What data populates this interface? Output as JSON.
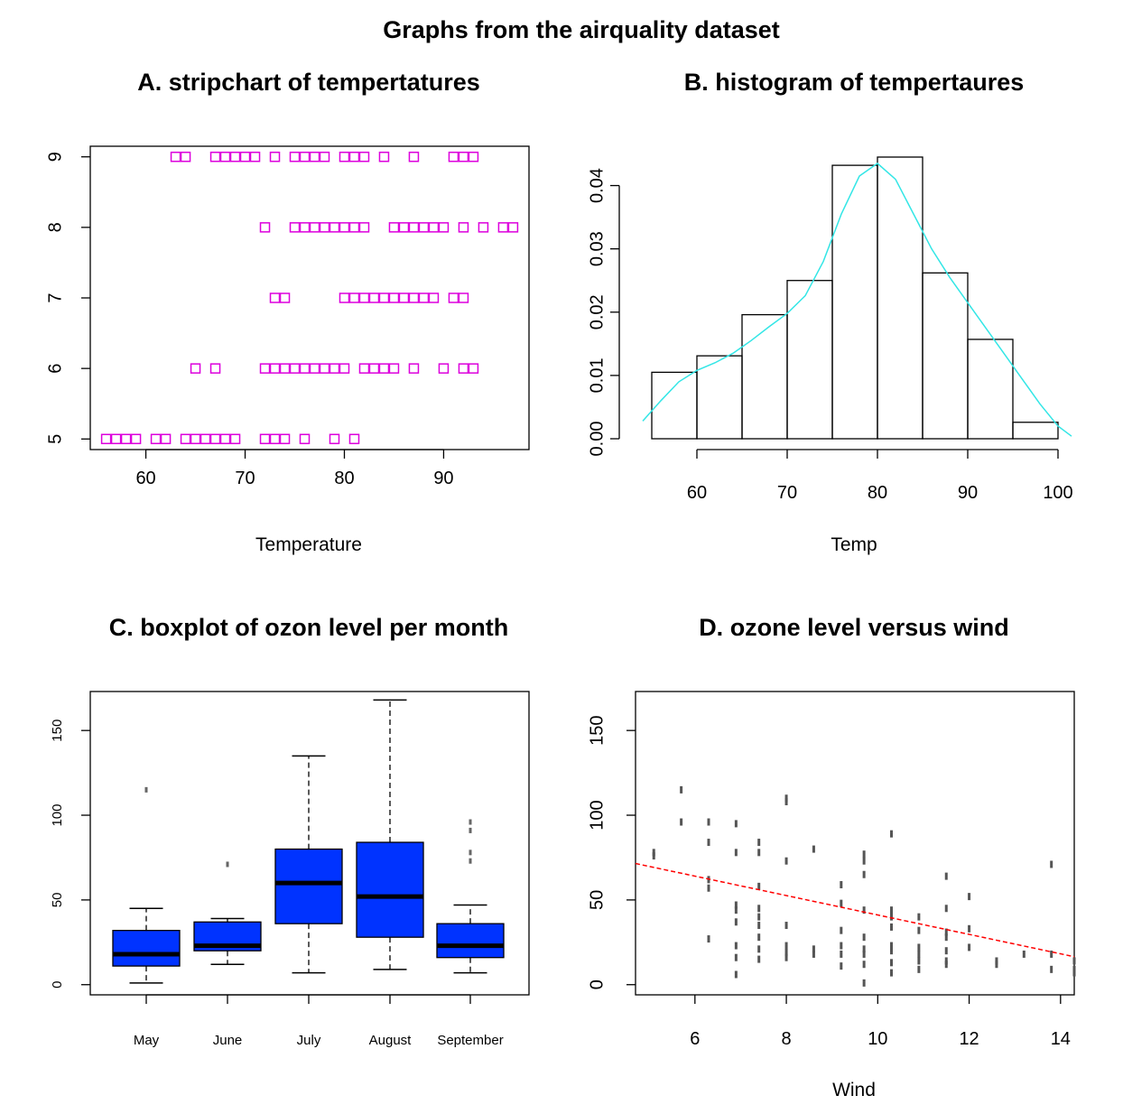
{
  "figure_title": "Graphs from the airquality dataset",
  "chart_data": [
    {
      "id": "A",
      "type": "scatter",
      "subtype": "stripchart",
      "title": "A. stripchart of tempertatures",
      "xlabel": "Temperature",
      "ylabel": "",
      "xlim": [
        54.4,
        98.6
      ],
      "ylim": [
        4.85,
        9.15
      ],
      "xticks": [
        60,
        70,
        80,
        90
      ],
      "yticks": [
        5,
        6,
        7,
        8,
        9
      ],
      "grid": false,
      "marker": "open-square",
      "color": "#dd00dd",
      "series": [
        {
          "name": "5",
          "y": 5,
          "values": [
            56,
            57,
            58,
            59,
            61,
            62,
            64,
            65,
            66,
            67,
            68,
            69,
            72,
            73,
            74,
            76,
            79,
            81
          ]
        },
        {
          "name": "6",
          "y": 6,
          "values": [
            65,
            67,
            72,
            73,
            74,
            75,
            76,
            77,
            78,
            79,
            80,
            82,
            83,
            84,
            85,
            87,
            90,
            92,
            93
          ]
        },
        {
          "name": "7",
          "y": 7,
          "values": [
            73,
            74,
            80,
            81,
            82,
            83,
            84,
            85,
            86,
            87,
            88,
            89,
            91,
            92
          ]
        },
        {
          "name": "8",
          "y": 8,
          "values": [
            72,
            75,
            76,
            77,
            78,
            79,
            80,
            81,
            82,
            85,
            86,
            87,
            88,
            89,
            90,
            92,
            94,
            96,
            97
          ]
        },
        {
          "name": "9",
          "y": 9,
          "values": [
            63,
            64,
            67,
            68,
            69,
            70,
            71,
            73,
            75,
            76,
            77,
            78,
            80,
            81,
            82,
            84,
            87,
            91,
            92,
            93
          ]
        }
      ]
    },
    {
      "id": "B",
      "type": "bar",
      "subtype": "histogram",
      "title": "B. histogram of tempertaures",
      "xlabel": "Temp",
      "ylabel": "",
      "xlim": [
        53.2,
        101.8
      ],
      "ylim": [
        0,
        0.0445
      ],
      "xticks": [
        60,
        70,
        80,
        90,
        100
      ],
      "yticks": [
        0.0,
        0.01,
        0.02,
        0.03,
        0.04
      ],
      "ytick_labels": [
        "0.00",
        "0.01",
        "0.02",
        "0.03",
        "0.04"
      ],
      "grid": false,
      "bins": [
        [
          55,
          60
        ],
        [
          60,
          65
        ],
        [
          65,
          70
        ],
        [
          70,
          75
        ],
        [
          75,
          80
        ],
        [
          80,
          85
        ],
        [
          85,
          90
        ],
        [
          90,
          95
        ],
        [
          95,
          100
        ]
      ],
      "values": [
        0.0105,
        0.0131,
        0.0196,
        0.025,
        0.0432,
        0.0445,
        0.0262,
        0.0157,
        0.0026
      ],
      "density_curve": {
        "color": "#33e6e6",
        "x": [
          54,
          56,
          58,
          60,
          62,
          64,
          66,
          68,
          70,
          72,
          74,
          76,
          78,
          80,
          82,
          84,
          86,
          88,
          90,
          92,
          94,
          96,
          98,
          100,
          102
        ],
        "y": [
          0.0028,
          0.006,
          0.009,
          0.0108,
          0.012,
          0.0135,
          0.0155,
          0.0177,
          0.0198,
          0.0226,
          0.028,
          0.0355,
          0.0415,
          0.0435,
          0.041,
          0.0355,
          0.03,
          0.0255,
          0.0215,
          0.0175,
          0.0135,
          0.0095,
          0.0055,
          0.002,
          0.0004
        ]
      }
    },
    {
      "id": "C",
      "type": "boxplot",
      "title": "C. boxplot of ozon level per month",
      "xlabel": "",
      "ylabel": "",
      "ylim": [
        -6,
        173
      ],
      "yticks": [
        0,
        50,
        100,
        150
      ],
      "grid": false,
      "categories": [
        "May",
        "June",
        "July",
        "August",
        "September"
      ],
      "box_color": "#0033ff",
      "boxes": [
        {
          "whisker_low": 1,
          "q1": 11,
          "median": 18,
          "q3": 32,
          "whisker_high": 45,
          "outliers": [
            115
          ]
        },
        {
          "whisker_low": 12,
          "q1": 20,
          "median": 23,
          "q3": 37,
          "whisker_high": 39,
          "outliers": [
            71
          ]
        },
        {
          "whisker_low": 7,
          "q1": 36,
          "median": 60,
          "q3": 80,
          "whisker_high": 135,
          "outliers": []
        },
        {
          "whisker_low": 9,
          "q1": 28,
          "median": 52,
          "q3": 84,
          "whisker_high": 168,
          "outliers": []
        },
        {
          "whisker_low": 7,
          "q1": 16,
          "median": 23,
          "q3": 36,
          "whisker_high": 47,
          "outliers": [
            73,
            78,
            91,
            96
          ]
        }
      ]
    },
    {
      "id": "D",
      "type": "scatter",
      "title": "D. ozone level versus wind",
      "xlabel": "Wind",
      "ylabel": "",
      "xlim": [
        4.7,
        14.3
      ],
      "ylim": [
        -6,
        173
      ],
      "xticks": [
        6,
        8,
        10,
        12,
        14
      ],
      "yticks": [
        0,
        50,
        100,
        150
      ],
      "grid": false,
      "point_color": "#555555",
      "x": [
        5.1,
        5.1,
        5.7,
        5.7,
        6.3,
        6.3,
        6.3,
        6.3,
        6.3,
        6.9,
        6.9,
        6.9,
        6.9,
        6.9,
        6.9,
        6.9,
        6.9,
        7.4,
        7.4,
        7.4,
        7.4,
        7.4,
        7.4,
        7.4,
        7.4,
        7.4,
        8.0,
        8.0,
        8.0,
        8.0,
        8.0,
        8.0,
        8.0,
        8.6,
        8.6,
        8.6,
        9.2,
        9.2,
        9.2,
        9.2,
        9.2,
        9.2,
        9.7,
        9.7,
        9.7,
        9.7,
        9.7,
        9.7,
        9.7,
        9.7,
        9.7,
        10.3,
        10.3,
        10.3,
        10.3,
        10.3,
        10.3,
        10.3,
        10.3,
        10.9,
        10.9,
        10.9,
        10.9,
        10.9,
        10.9,
        11.5,
        11.5,
        11.5,
        11.5,
        11.5,
        11.5,
        11.5,
        12.0,
        12.0,
        12.0,
        12.6,
        12.6,
        13.2,
        13.8,
        13.8,
        13.8,
        14.3,
        14.3,
        14.3
      ],
      "y": [
        76,
        78,
        96,
        115,
        27,
        57,
        62,
        84,
        96,
        6,
        16,
        23,
        37,
        44,
        47,
        78,
        95,
        15,
        21,
        28,
        35,
        40,
        45,
        58,
        78,
        84,
        16,
        19,
        23,
        35,
        73,
        108,
        110,
        18,
        21,
        80,
        11,
        18,
        23,
        32,
        48,
        59,
        1,
        12,
        18,
        21,
        28,
        44,
        65,
        73,
        77,
        7,
        13,
        20,
        23,
        34,
        40,
        44,
        89,
        9,
        14,
        18,
        22,
        32,
        40,
        12,
        14,
        20,
        28,
        31,
        45,
        64,
        22,
        33,
        52,
        12,
        14,
        18,
        9,
        18,
        71,
        7,
        9,
        14
      ],
      "trend_line": {
        "color": "#ff0000",
        "style": "dashed",
        "x": [
          4.7,
          14.3
        ],
        "y": [
          71.5,
          16.5
        ]
      }
    }
  ]
}
